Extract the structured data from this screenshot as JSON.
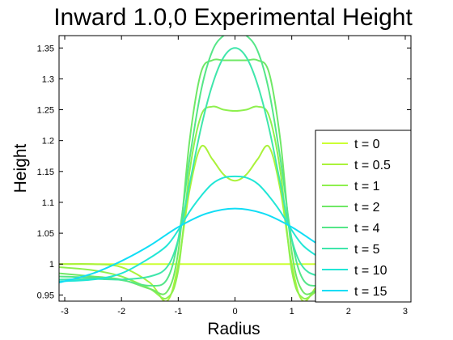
{
  "chart_data": {
    "type": "line",
    "title": "Inward 1.0,0 Experimental Height",
    "xlabel": "Radius",
    "ylabel": "Height",
    "xlim": [
      -3.1,
      3.1
    ],
    "ylim": [
      0.94,
      1.37
    ],
    "xticks": [
      -3,
      -2,
      -1,
      0,
      1,
      2,
      3
    ],
    "yticks": [
      0.95,
      1,
      1.05,
      1.1,
      1.15,
      1.2,
      1.25,
      1.3,
      1.35
    ],
    "ytick_labels": [
      "0.95",
      "1",
      "1.05",
      "1.1",
      "1.15",
      "1.2",
      "1.25",
      "1.3",
      "1.35"
    ],
    "grid": false,
    "legend_position": "right",
    "series": [
      {
        "name": "t = 0",
        "color": "#ccff33",
        "x": [
          -3.1,
          -1.0,
          0,
          1.0,
          3.1
        ],
        "y": [
          1.0,
          1.0,
          1.0,
          1.0,
          1.0
        ]
      },
      {
        "name": "t = 0.5",
        "color": "#aaf23a",
        "x": [
          -3.1,
          -2.5,
          -2.0,
          -1.5,
          -1.2,
          -1.0,
          -0.8,
          -0.6,
          -0.4,
          -0.2,
          0,
          0.2,
          0.4,
          0.6,
          0.8,
          1.0,
          1.2,
          1.5,
          2.0,
          2.5,
          3.1
        ],
        "y": [
          1.0,
          1.0,
          0.995,
          0.97,
          0.94,
          1.0,
          1.12,
          1.19,
          1.17,
          1.145,
          1.135,
          1.145,
          1.17,
          1.19,
          1.12,
          1.0,
          0.94,
          0.97,
          0.995,
          1.0,
          1.0
        ]
      },
      {
        "name": "t = 1",
        "color": "#8ef04e",
        "x": [
          -3.1,
          -2.5,
          -2.0,
          -1.5,
          -1.2,
          -1.0,
          -0.8,
          -0.6,
          -0.4,
          -0.2,
          0,
          0.2,
          0.4,
          0.6,
          0.8,
          1.0,
          1.2,
          1.5,
          2.0,
          2.5,
          3.1
        ],
        "y": [
          0.995,
          0.99,
          0.98,
          0.96,
          0.945,
          0.99,
          1.15,
          1.24,
          1.255,
          1.25,
          1.248,
          1.25,
          1.255,
          1.24,
          1.15,
          0.99,
          0.945,
          0.96,
          0.98,
          0.99,
          0.995
        ]
      },
      {
        "name": "t = 2",
        "color": "#6fe866",
        "x": [
          -3.1,
          -2.5,
          -2.0,
          -1.5,
          -1.2,
          -1.0,
          -0.8,
          -0.6,
          -0.4,
          -0.2,
          0,
          0.2,
          0.4,
          0.6,
          0.8,
          1.0,
          1.2,
          1.5,
          2.0,
          2.5,
          3.1
        ],
        "y": [
          0.985,
          0.98,
          0.975,
          0.96,
          0.955,
          1.02,
          1.2,
          1.31,
          1.33,
          1.33,
          1.33,
          1.33,
          1.33,
          1.31,
          1.2,
          1.02,
          0.955,
          0.96,
          0.975,
          0.98,
          0.985
        ]
      },
      {
        "name": "t = 4",
        "color": "#55e688",
        "x": [
          -3.1,
          -2.5,
          -2.0,
          -1.5,
          -1.2,
          -1.0,
          -0.8,
          -0.6,
          -0.4,
          -0.2,
          0,
          0.2,
          0.4,
          0.6,
          0.8,
          1.0,
          1.2,
          1.5,
          2.0,
          2.5,
          3.1
        ],
        "y": [
          0.98,
          0.978,
          0.974,
          0.965,
          0.975,
          1.04,
          1.17,
          1.28,
          1.345,
          1.37,
          1.375,
          1.37,
          1.345,
          1.28,
          1.17,
          1.04,
          0.975,
          0.965,
          0.974,
          0.978,
          0.98
        ]
      },
      {
        "name": "t = 5",
        "color": "#3fe6ab",
        "x": [
          -3.1,
          -2.5,
          -2.0,
          -1.5,
          -1.2,
          -1.0,
          -0.8,
          -0.6,
          -0.4,
          -0.2,
          0,
          0.2,
          0.4,
          0.6,
          0.8,
          1.0,
          1.2,
          1.5,
          2.0,
          2.5,
          3.1
        ],
        "y": [
          0.975,
          0.976,
          0.975,
          0.98,
          0.995,
          1.04,
          1.13,
          1.22,
          1.29,
          1.335,
          1.35,
          1.335,
          1.29,
          1.22,
          1.13,
          1.04,
          0.995,
          0.98,
          0.975,
          0.976,
          0.975
        ]
      },
      {
        "name": "t = 10",
        "color": "#22e6d6",
        "x": [
          -3.1,
          -2.5,
          -2.0,
          -1.5,
          -1.2,
          -1.0,
          -0.8,
          -0.6,
          -0.4,
          -0.2,
          0,
          0.2,
          0.4,
          0.6,
          0.8,
          1.0,
          1.2,
          1.5,
          2.0,
          2.5,
          3.1
        ],
        "y": [
          0.972,
          0.975,
          0.985,
          1.01,
          1.03,
          1.055,
          1.085,
          1.11,
          1.13,
          1.14,
          1.142,
          1.14,
          1.13,
          1.11,
          1.085,
          1.055,
          1.03,
          1.01,
          0.985,
          0.975,
          0.972
        ]
      },
      {
        "name": "t = 15",
        "color": "#11ddf5",
        "x": [
          -3.1,
          -2.5,
          -2.0,
          -1.5,
          -1.0,
          -0.5,
          0,
          0.5,
          1.0,
          1.5,
          2.0,
          2.5,
          3.1
        ],
        "y": [
          0.97,
          0.985,
          1.005,
          1.03,
          1.06,
          1.082,
          1.09,
          1.082,
          1.06,
          1.03,
          1.005,
          0.985,
          0.97
        ]
      }
    ]
  }
}
